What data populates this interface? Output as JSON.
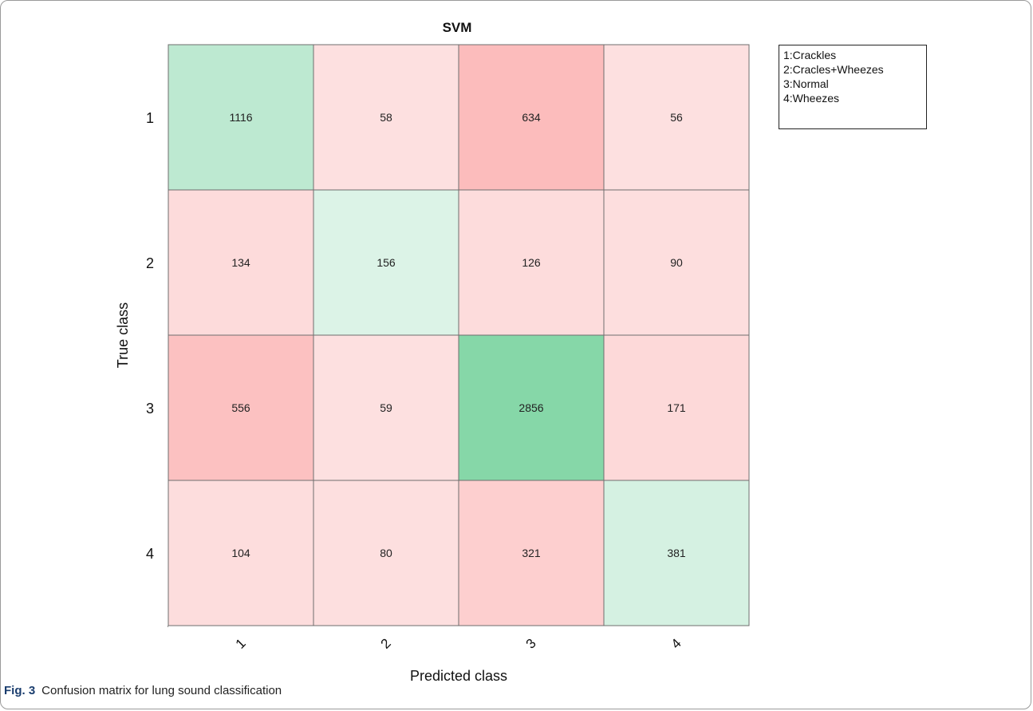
{
  "chart_data": {
    "type": "heatmap",
    "title": "SVM",
    "xlabel": "Predicted class",
    "ylabel": "True class",
    "row_labels": [
      "1",
      "2",
      "3",
      "4"
    ],
    "col_labels": [
      "1",
      "2",
      "3",
      "4"
    ],
    "values": [
      [
        1116,
        58,
        634,
        56
      ],
      [
        134,
        156,
        126,
        90
      ],
      [
        556,
        59,
        2856,
        171
      ],
      [
        104,
        80,
        321,
        381
      ]
    ],
    "colors": {
      "correct_max": "#86d7a8",
      "correct_min": "#dcf3e7",
      "error_max": "#fcbcbc",
      "error_min": "#fde0e0",
      "grid": "#6e6e6e"
    }
  },
  "legend": {
    "items": [
      "1:Crackles",
      "2:Cracles+Wheezes",
      "3:Normal",
      "4:Wheezes"
    ]
  },
  "caption": {
    "label": "Fig. 3",
    "text": "Confusion matrix for lung sound classification"
  }
}
